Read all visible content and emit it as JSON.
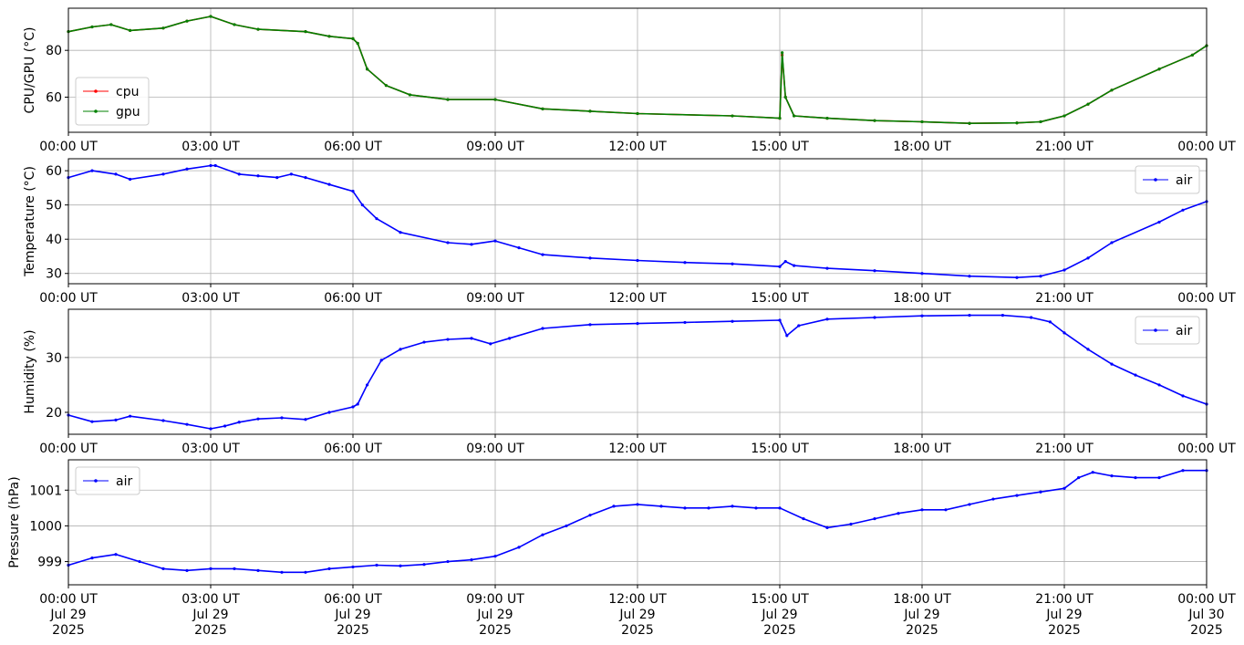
{
  "x_tick_labels": [
    "00:00 UT",
    "03:00 UT",
    "06:00 UT",
    "09:00 UT",
    "12:00 UT",
    "15:00 UT",
    "18:00 UT",
    "21:00 UT",
    "00:00 UT"
  ],
  "x_tick_dates": [
    "Jul 29",
    "Jul 29",
    "Jul 29",
    "Jul 29",
    "Jul 29",
    "Jul 29",
    "Jul 29",
    "Jul 29",
    "Jul 30"
  ],
  "x_tick_years": [
    "2025",
    "2025",
    "2025",
    "2025",
    "2025",
    "2025",
    "2025",
    "2025",
    "2025"
  ],
  "chart_data": [
    {
      "type": "line",
      "ylabel": "CPU/GPU (°C)",
      "x_unit": "hours since 2025-07-29 00:00 UT",
      "xlim": [
        0,
        24
      ],
      "ylim": [
        45,
        98
      ],
      "yticks": [
        60,
        80
      ],
      "grid": true,
      "legend": "lower-left",
      "series": [
        {
          "name": "cpu",
          "color": "#ff0000",
          "x": [
            0,
            0.5,
            0.9,
            1.3,
            2.0,
            2.5,
            3.0,
            3.5,
            4.0,
            5.0,
            5.5,
            6.0,
            6.1,
            6.3,
            6.7,
            7.2,
            8.0,
            9.0,
            10.0,
            11.0,
            12.0,
            14.0,
            15.0,
            15.05,
            15.12,
            15.3,
            16.0,
            17.0,
            18.0,
            19.0,
            20.0,
            20.5,
            21.0,
            21.5,
            22.0,
            23.0,
            23.7,
            24.0
          ],
          "y": [
            88,
            90,
            91,
            88.5,
            89.5,
            92.5,
            94.5,
            91,
            89,
            88,
            86,
            85,
            83,
            72,
            65,
            61,
            59,
            59,
            55,
            54,
            53,
            52,
            51,
            78,
            60,
            52,
            51,
            50,
            49.5,
            48.8,
            49,
            49.5,
            52,
            57,
            63,
            72,
            78,
            82
          ]
        },
        {
          "name": "gpu",
          "color": "#008000",
          "x": [
            0,
            0.5,
            0.9,
            1.3,
            2.0,
            2.5,
            3.0,
            3.5,
            4.0,
            5.0,
            5.5,
            6.0,
            6.1,
            6.3,
            6.7,
            7.2,
            8.0,
            9.0,
            10.0,
            11.0,
            12.0,
            14.0,
            15.0,
            15.05,
            15.12,
            15.3,
            16.0,
            17.0,
            18.0,
            19.0,
            20.0,
            20.5,
            21.0,
            21.5,
            22.0,
            23.0,
            23.7,
            24.0
          ],
          "y": [
            88,
            90,
            91,
            88.5,
            89.5,
            92.5,
            94.5,
            91,
            89,
            88,
            86,
            85,
            83,
            72,
            65,
            61,
            59,
            59,
            55,
            54,
            53,
            52,
            51,
            79,
            60,
            52,
            51,
            50,
            49.5,
            48.8,
            49,
            49.5,
            52,
            57,
            63,
            72,
            78,
            82
          ]
        }
      ]
    },
    {
      "type": "line",
      "ylabel": "Temperature (°C)",
      "x_unit": "hours since 2025-07-29 00:00 UT",
      "xlim": [
        0,
        24
      ],
      "ylim": [
        27,
        63.5
      ],
      "yticks": [
        30,
        40,
        50,
        60
      ],
      "grid": true,
      "legend": "upper-right",
      "series": [
        {
          "name": "air",
          "color": "#0000ff",
          "x": [
            0,
            0.5,
            1.0,
            1.3,
            2.0,
            2.5,
            3.0,
            3.1,
            3.6,
            4.0,
            4.4,
            4.7,
            5.0,
            5.5,
            6.0,
            6.2,
            6.5,
            7.0,
            8.0,
            8.5,
            9.0,
            9.5,
            10.0,
            11.0,
            12.0,
            13.0,
            14.0,
            15.0,
            15.12,
            15.3,
            16.0,
            17.0,
            18.0,
            19.0,
            20.0,
            20.5,
            21.0,
            21.5,
            22.0,
            23.0,
            23.5,
            24.0
          ],
          "y": [
            58,
            60,
            59,
            57.5,
            59,
            60.5,
            61.5,
            61.5,
            59,
            58.5,
            58,
            59,
            58,
            56,
            54,
            50,
            46,
            42,
            39,
            38.5,
            39.5,
            37.5,
            35.5,
            34.5,
            33.8,
            33.2,
            32.8,
            32,
            33.5,
            32.3,
            31.5,
            30.8,
            30,
            29.2,
            28.8,
            29.2,
            31,
            34.5,
            39,
            45,
            48.5,
            51
          ]
        }
      ]
    },
    {
      "type": "line",
      "ylabel": "Humidity (%)",
      "x_unit": "hours since 2025-07-29 00:00 UT",
      "xlim": [
        0,
        24
      ],
      "ylim": [
        16,
        38.8
      ],
      "yticks": [
        20,
        30
      ],
      "grid": true,
      "legend": "upper-right",
      "series": [
        {
          "name": "air",
          "color": "#0000ff",
          "x": [
            0,
            0.5,
            1.0,
            1.3,
            2.0,
            2.5,
            3.0,
            3.3,
            3.6,
            4.0,
            4.5,
            5.0,
            5.5,
            6.0,
            6.1,
            6.3,
            6.6,
            7.0,
            7.5,
            8.0,
            8.5,
            8.9,
            9.3,
            10.0,
            11.0,
            12.0,
            13.0,
            14.0,
            15.0,
            15.15,
            15.4,
            16.0,
            17.0,
            18.0,
            19.0,
            19.7,
            20.3,
            20.7,
            21.0,
            21.5,
            22.0,
            22.5,
            23.0,
            23.5,
            24.0
          ],
          "y": [
            19.5,
            18.3,
            18.6,
            19.3,
            18.5,
            17.8,
            17,
            17.5,
            18.2,
            18.8,
            19,
            18.7,
            20,
            21,
            21.5,
            25,
            29.5,
            31.5,
            32.8,
            33.3,
            33.5,
            32.5,
            33.5,
            35.3,
            36,
            36.2,
            36.4,
            36.6,
            36.8,
            34,
            35.8,
            37,
            37.3,
            37.6,
            37.7,
            37.7,
            37.3,
            36.5,
            34.5,
            31.5,
            28.8,
            26.8,
            25,
            23,
            21.5
          ]
        }
      ]
    },
    {
      "type": "line",
      "ylabel": "Pressure (hPa)",
      "x_unit": "hours since 2025-07-29 00:00 UT",
      "xlim": [
        0,
        24
      ],
      "ylim": [
        998.35,
        1001.85
      ],
      "yticks": [
        999,
        1000,
        1001
      ],
      "grid": true,
      "legend": "upper-left",
      "series": [
        {
          "name": "air",
          "color": "#0000ff",
          "x": [
            0,
            0.5,
            1.0,
            1.5,
            2.0,
            2.5,
            3.0,
            3.5,
            4.0,
            4.5,
            5.0,
            5.5,
            6.0,
            6.5,
            7.0,
            7.5,
            8.0,
            8.5,
            9.0,
            9.5,
            10.0,
            10.5,
            11.0,
            11.5,
            12.0,
            12.5,
            13.0,
            13.5,
            14.0,
            14.5,
            15.0,
            15.5,
            16.0,
            16.5,
            17.0,
            17.5,
            18.0,
            18.5,
            19.0,
            19.5,
            20.0,
            20.5,
            21.0,
            21.3,
            21.6,
            22.0,
            22.5,
            23.0,
            23.5,
            24.0
          ],
          "y": [
            998.9,
            999.1,
            999.2,
            999.0,
            998.8,
            998.75,
            998.8,
            998.8,
            998.75,
            998.7,
            998.7,
            998.8,
            998.85,
            998.9,
            998.88,
            998.92,
            999.0,
            999.05,
            999.15,
            999.4,
            999.75,
            1000.0,
            1000.3,
            1000.55,
            1000.6,
            1000.55,
            1000.5,
            1000.5,
            1000.55,
            1000.5,
            1000.5,
            1000.2,
            999.95,
            1000.05,
            1000.2,
            1000.35,
            1000.45,
            1000.45,
            1000.6,
            1000.75,
            1000.85,
            1000.95,
            1001.05,
            1001.35,
            1001.5,
            1001.4,
            1001.35,
            1001.35,
            1001.55,
            1001.55
          ]
        }
      ]
    }
  ]
}
